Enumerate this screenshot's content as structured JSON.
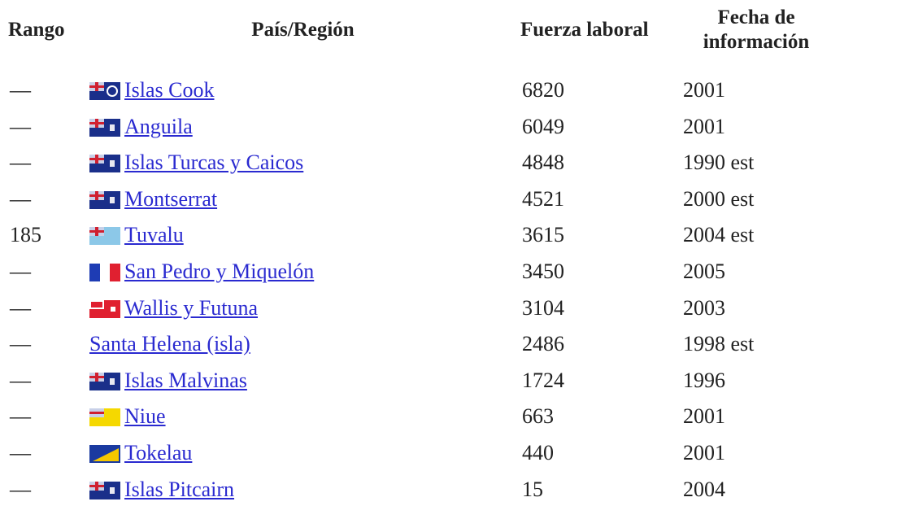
{
  "table": {
    "header": [
      "Rango",
      "País/Región",
      "Fuerza laboral",
      "Fecha de información"
    ],
    "rows": [
      [
        "—",
        "Islas Cook",
        6820,
        "2001"
      ],
      [
        "—",
        "Anguila",
        6049,
        "2001"
      ],
      [
        "—",
        "Islas Turcas y Caicos",
        4848,
        "1990 est"
      ],
      [
        "—",
        "Montserrat",
        4521,
        "2000 est"
      ],
      [
        185,
        "Tuvalu",
        3615,
        "2004 est"
      ],
      [
        "—",
        "San Pedro y Miquelón",
        3450,
        "2005"
      ],
      [
        "—",
        "Wallis y Futuna",
        3104,
        "2003"
      ],
      [
        "—",
        "Santa Helena (isla)",
        2486,
        "1998 est"
      ],
      [
        "—",
        "Islas Malvinas",
        1724,
        "1996"
      ],
      [
        "—",
        "Niue",
        663,
        "2001"
      ],
      [
        "—",
        "Tokelau",
        440,
        "2001"
      ],
      [
        "—",
        "Islas Pitcairn",
        15,
        "2004"
      ]
    ]
  }
}
